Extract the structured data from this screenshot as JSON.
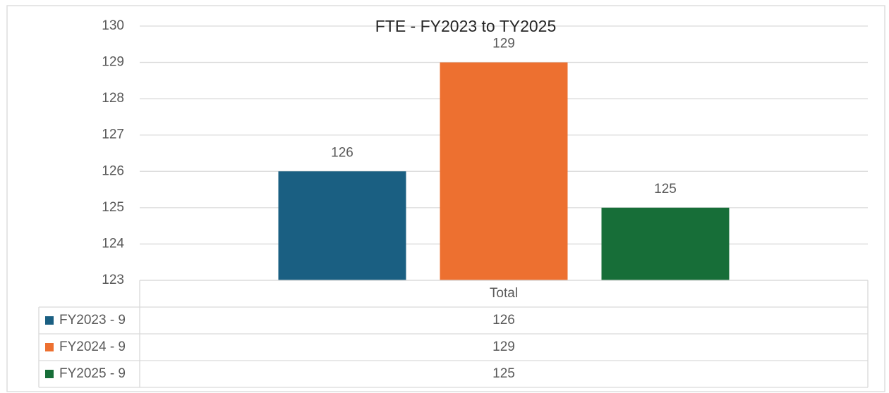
{
  "chart_data": {
    "type": "bar",
    "title": "FTE - FY2023 to TY2025",
    "categories": [
      "Total"
    ],
    "series": [
      {
        "name": "FY2023 - 9",
        "color": "#1a5f82",
        "values": [
          126
        ]
      },
      {
        "name": "FY2024 - 9",
        "color": "#ed7030",
        "values": [
          129
        ]
      },
      {
        "name": "FY2025 - 9",
        "color": "#176e38",
        "values": [
          125
        ]
      }
    ],
    "ylim": [
      123,
      130
    ],
    "yticks": [
      123,
      124,
      125,
      126,
      127,
      128,
      129,
      130
    ],
    "grid": true
  }
}
